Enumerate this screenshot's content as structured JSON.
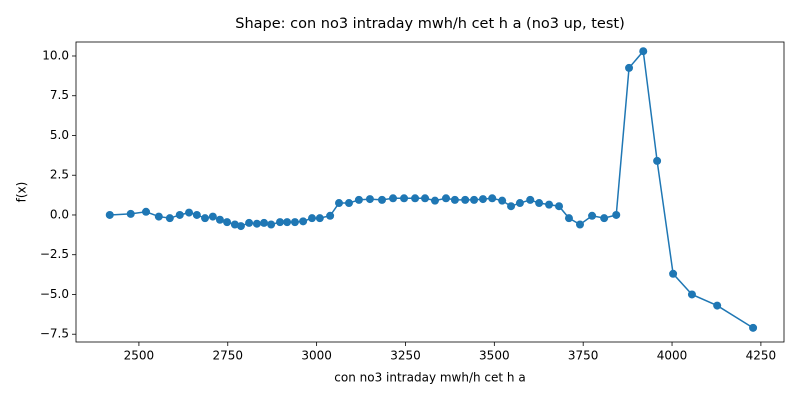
{
  "chart_data": {
    "type": "line",
    "title": "Shape: con no3 intraday mwh/h cet h a (no3 up, test)",
    "x_label": "con no3 intraday mwh/h cet h a",
    "y_label": "f(x)",
    "series": [
      {
        "color": "#1f77b4",
        "x": [
          2418,
          2477,
          2520,
          2556,
          2587,
          2615,
          2641,
          2663,
          2686,
          2708,
          2728,
          2748,
          2770,
          2787,
          2810,
          2832,
          2852,
          2872,
          2897,
          2917,
          2939,
          2962,
          2987,
          3009,
          3038,
          3063,
          3091,
          3119,
          3150,
          3184,
          3215,
          3246,
          3277,
          3305,
          3333,
          3364,
          3389,
          3418,
          3443,
          3468,
          3494,
          3522,
          3547,
          3572,
          3601,
          3626,
          3654,
          3682,
          3710,
          3741,
          3775,
          3809,
          3843,
          3879,
          3919,
          3958,
          4003,
          4056,
          4127,
          4228
        ],
        "values": [
          0.0,
          0.07,
          0.2,
          -0.1,
          -0.2,
          0.0,
          0.15,
          0.0,
          -0.2,
          -0.1,
          -0.3,
          -0.45,
          -0.6,
          -0.7,
          -0.5,
          -0.55,
          -0.5,
          -0.6,
          -0.45,
          -0.45,
          -0.45,
          -0.4,
          -0.2,
          -0.2,
          -0.05,
          0.75,
          0.75,
          0.95,
          1.0,
          0.95,
          1.05,
          1.05,
          1.05,
          1.05,
          0.9,
          1.05,
          0.95,
          0.95,
          0.95,
          1.0,
          1.05,
          0.9,
          0.55,
          0.75,
          0.95,
          0.75,
          0.65,
          0.55,
          -0.2,
          -0.6,
          -0.05,
          -0.2,
          0.0,
          9.25,
          10.3,
          3.4,
          -3.7,
          -5.0,
          -5.7,
          -7.1
        ]
      }
    ],
    "xlim": [
      2323,
      4315
    ],
    "xticks": [
      2500,
      2750,
      3000,
      3250,
      3500,
      3750,
      4000,
      4250
    ],
    "ylim": [
      -7.99,
      10.88
    ],
    "yticks": [
      {
        "value": -7.5,
        "label": "−7.5"
      },
      {
        "value": -5,
        "label": "−5.0"
      },
      {
        "value": -2.5,
        "label": "−2.5"
      },
      {
        "value": 0,
        "label": "0.0"
      },
      2.5,
      {
        "value": 5,
        "label": "5.0"
      },
      7.5,
      {
        "value": 10,
        "label": "10.0"
      }
    ],
    "grid": false
  }
}
